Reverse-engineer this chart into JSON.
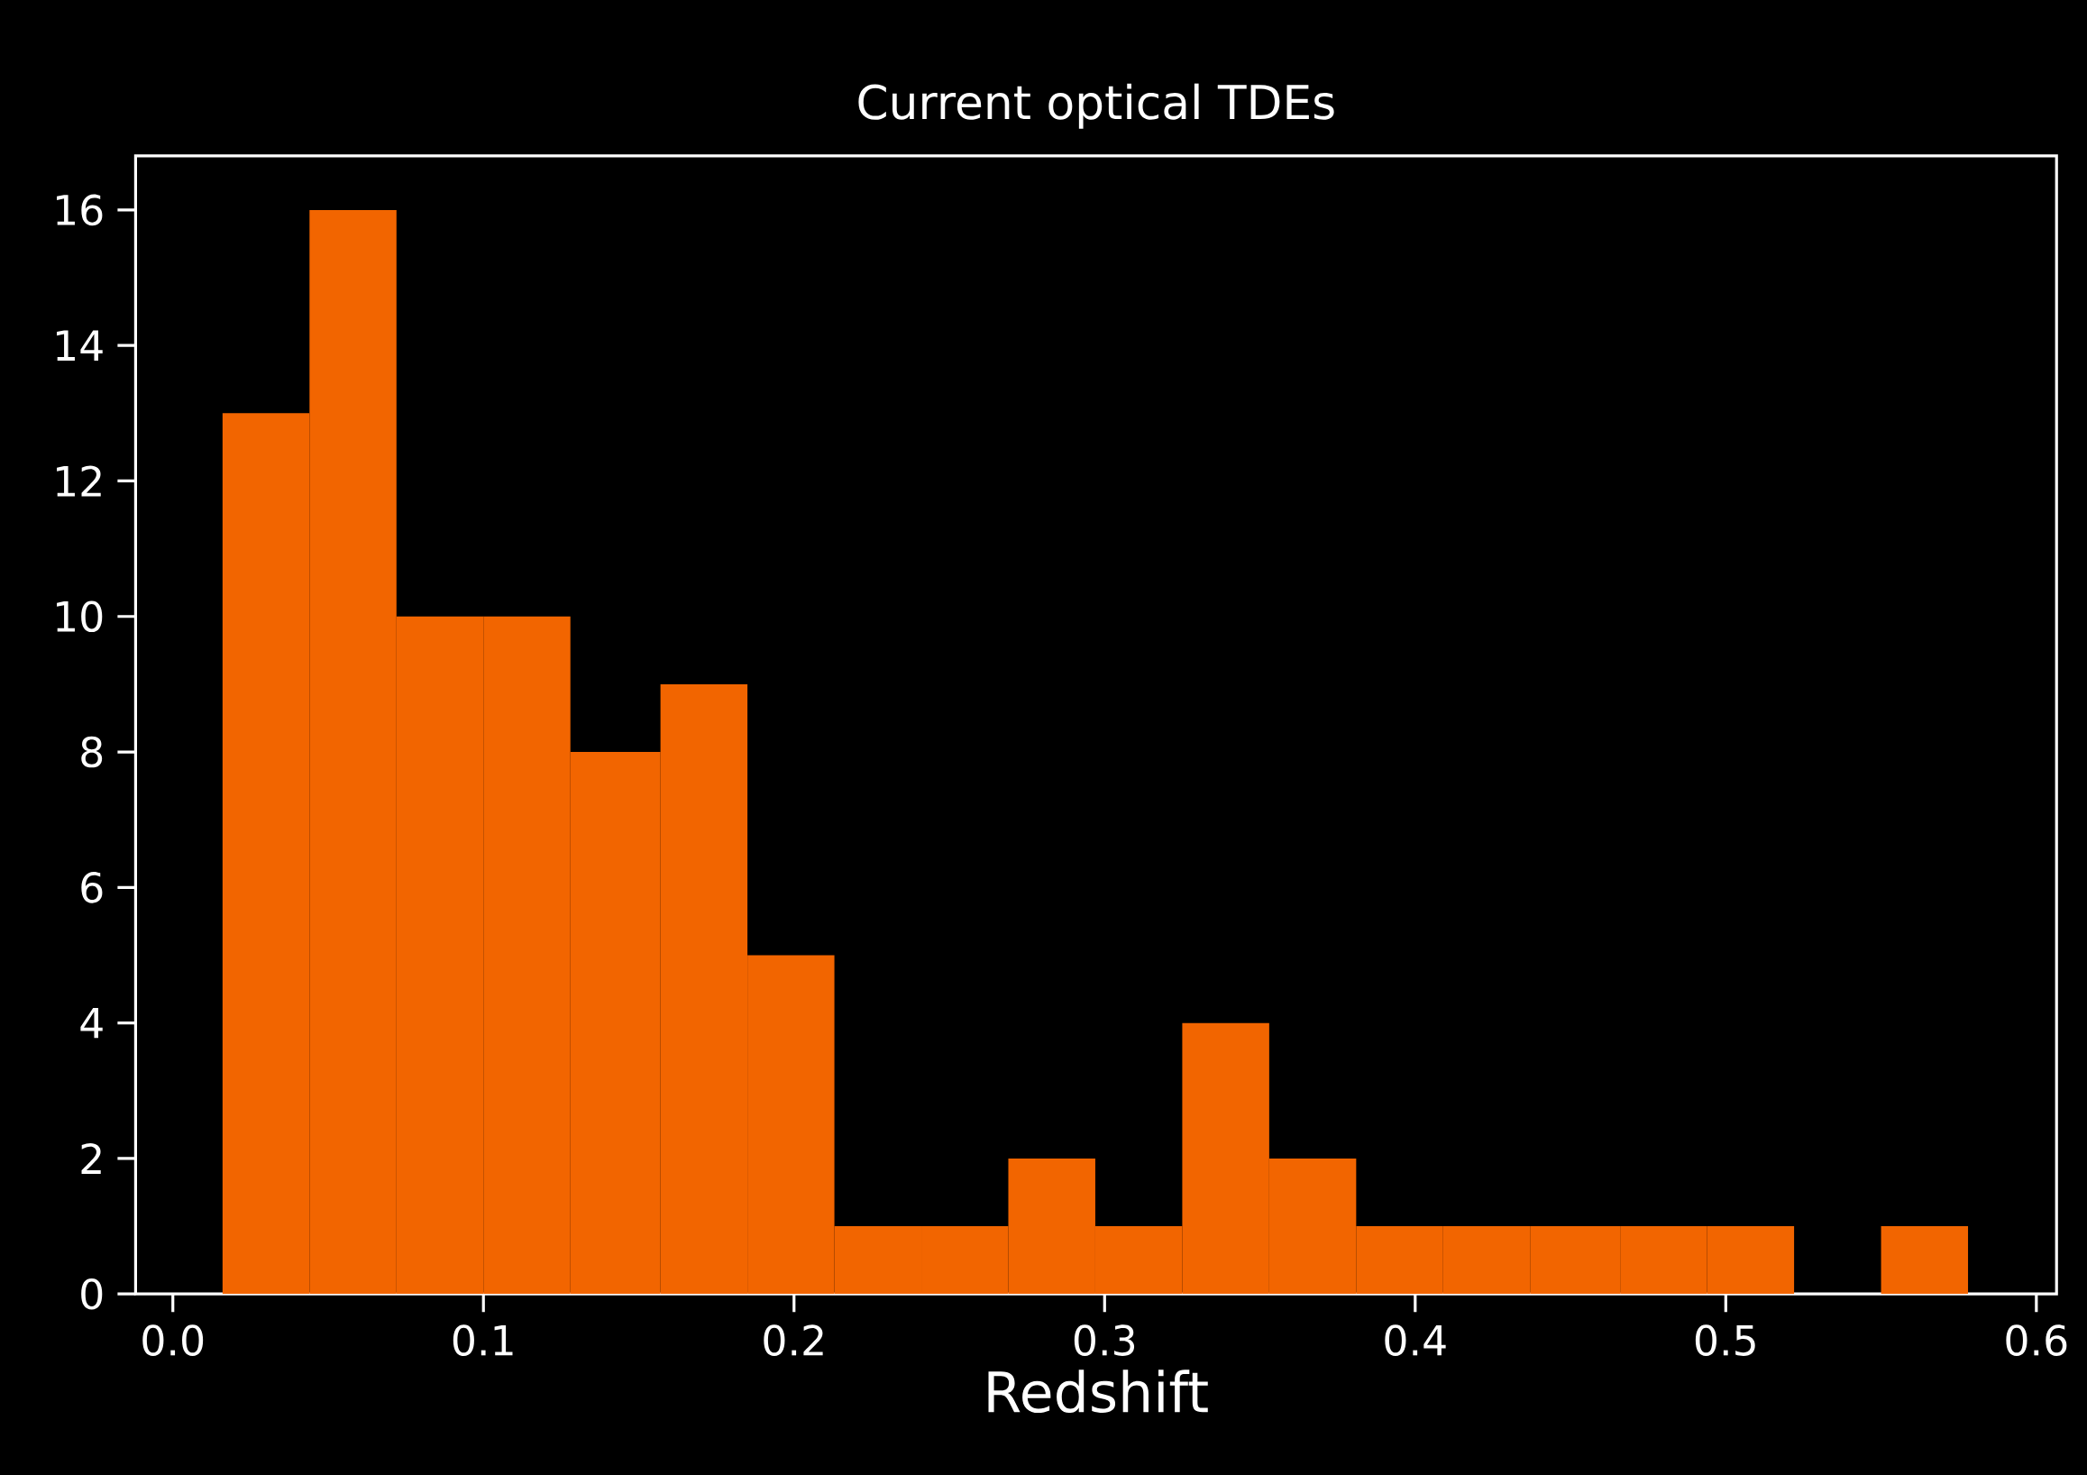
{
  "chart_data": {
    "type": "histogram",
    "title": "Current optical TDEs",
    "xlabel": "Redshift",
    "bins": [
      0.016,
      0.044,
      0.072,
      0.1,
      0.128,
      0.157,
      0.185,
      0.213,
      0.241,
      0.269,
      0.297,
      0.325,
      0.353,
      0.381,
      0.409,
      0.437,
      0.466,
      0.494,
      0.522,
      0.55,
      0.578
    ],
    "values": [
      13,
      16,
      10,
      10,
      8,
      9,
      5,
      1,
      1,
      2,
      1,
      4,
      2,
      1,
      1,
      1,
      1,
      1,
      0,
      1
    ],
    "color": "#f26500",
    "xlim": [
      -0.012,
      0.6065
    ],
    "ylim": [
      0,
      16.8
    ],
    "xticks": [
      {
        "value": 0,
        "label": "0.0"
      },
      0.1,
      0.2,
      0.3,
      0.4,
      0.5,
      0.6
    ],
    "yticks": [
      0,
      2,
      4,
      6,
      8,
      10,
      12,
      14,
      16
    ],
    "grid": false
  }
}
